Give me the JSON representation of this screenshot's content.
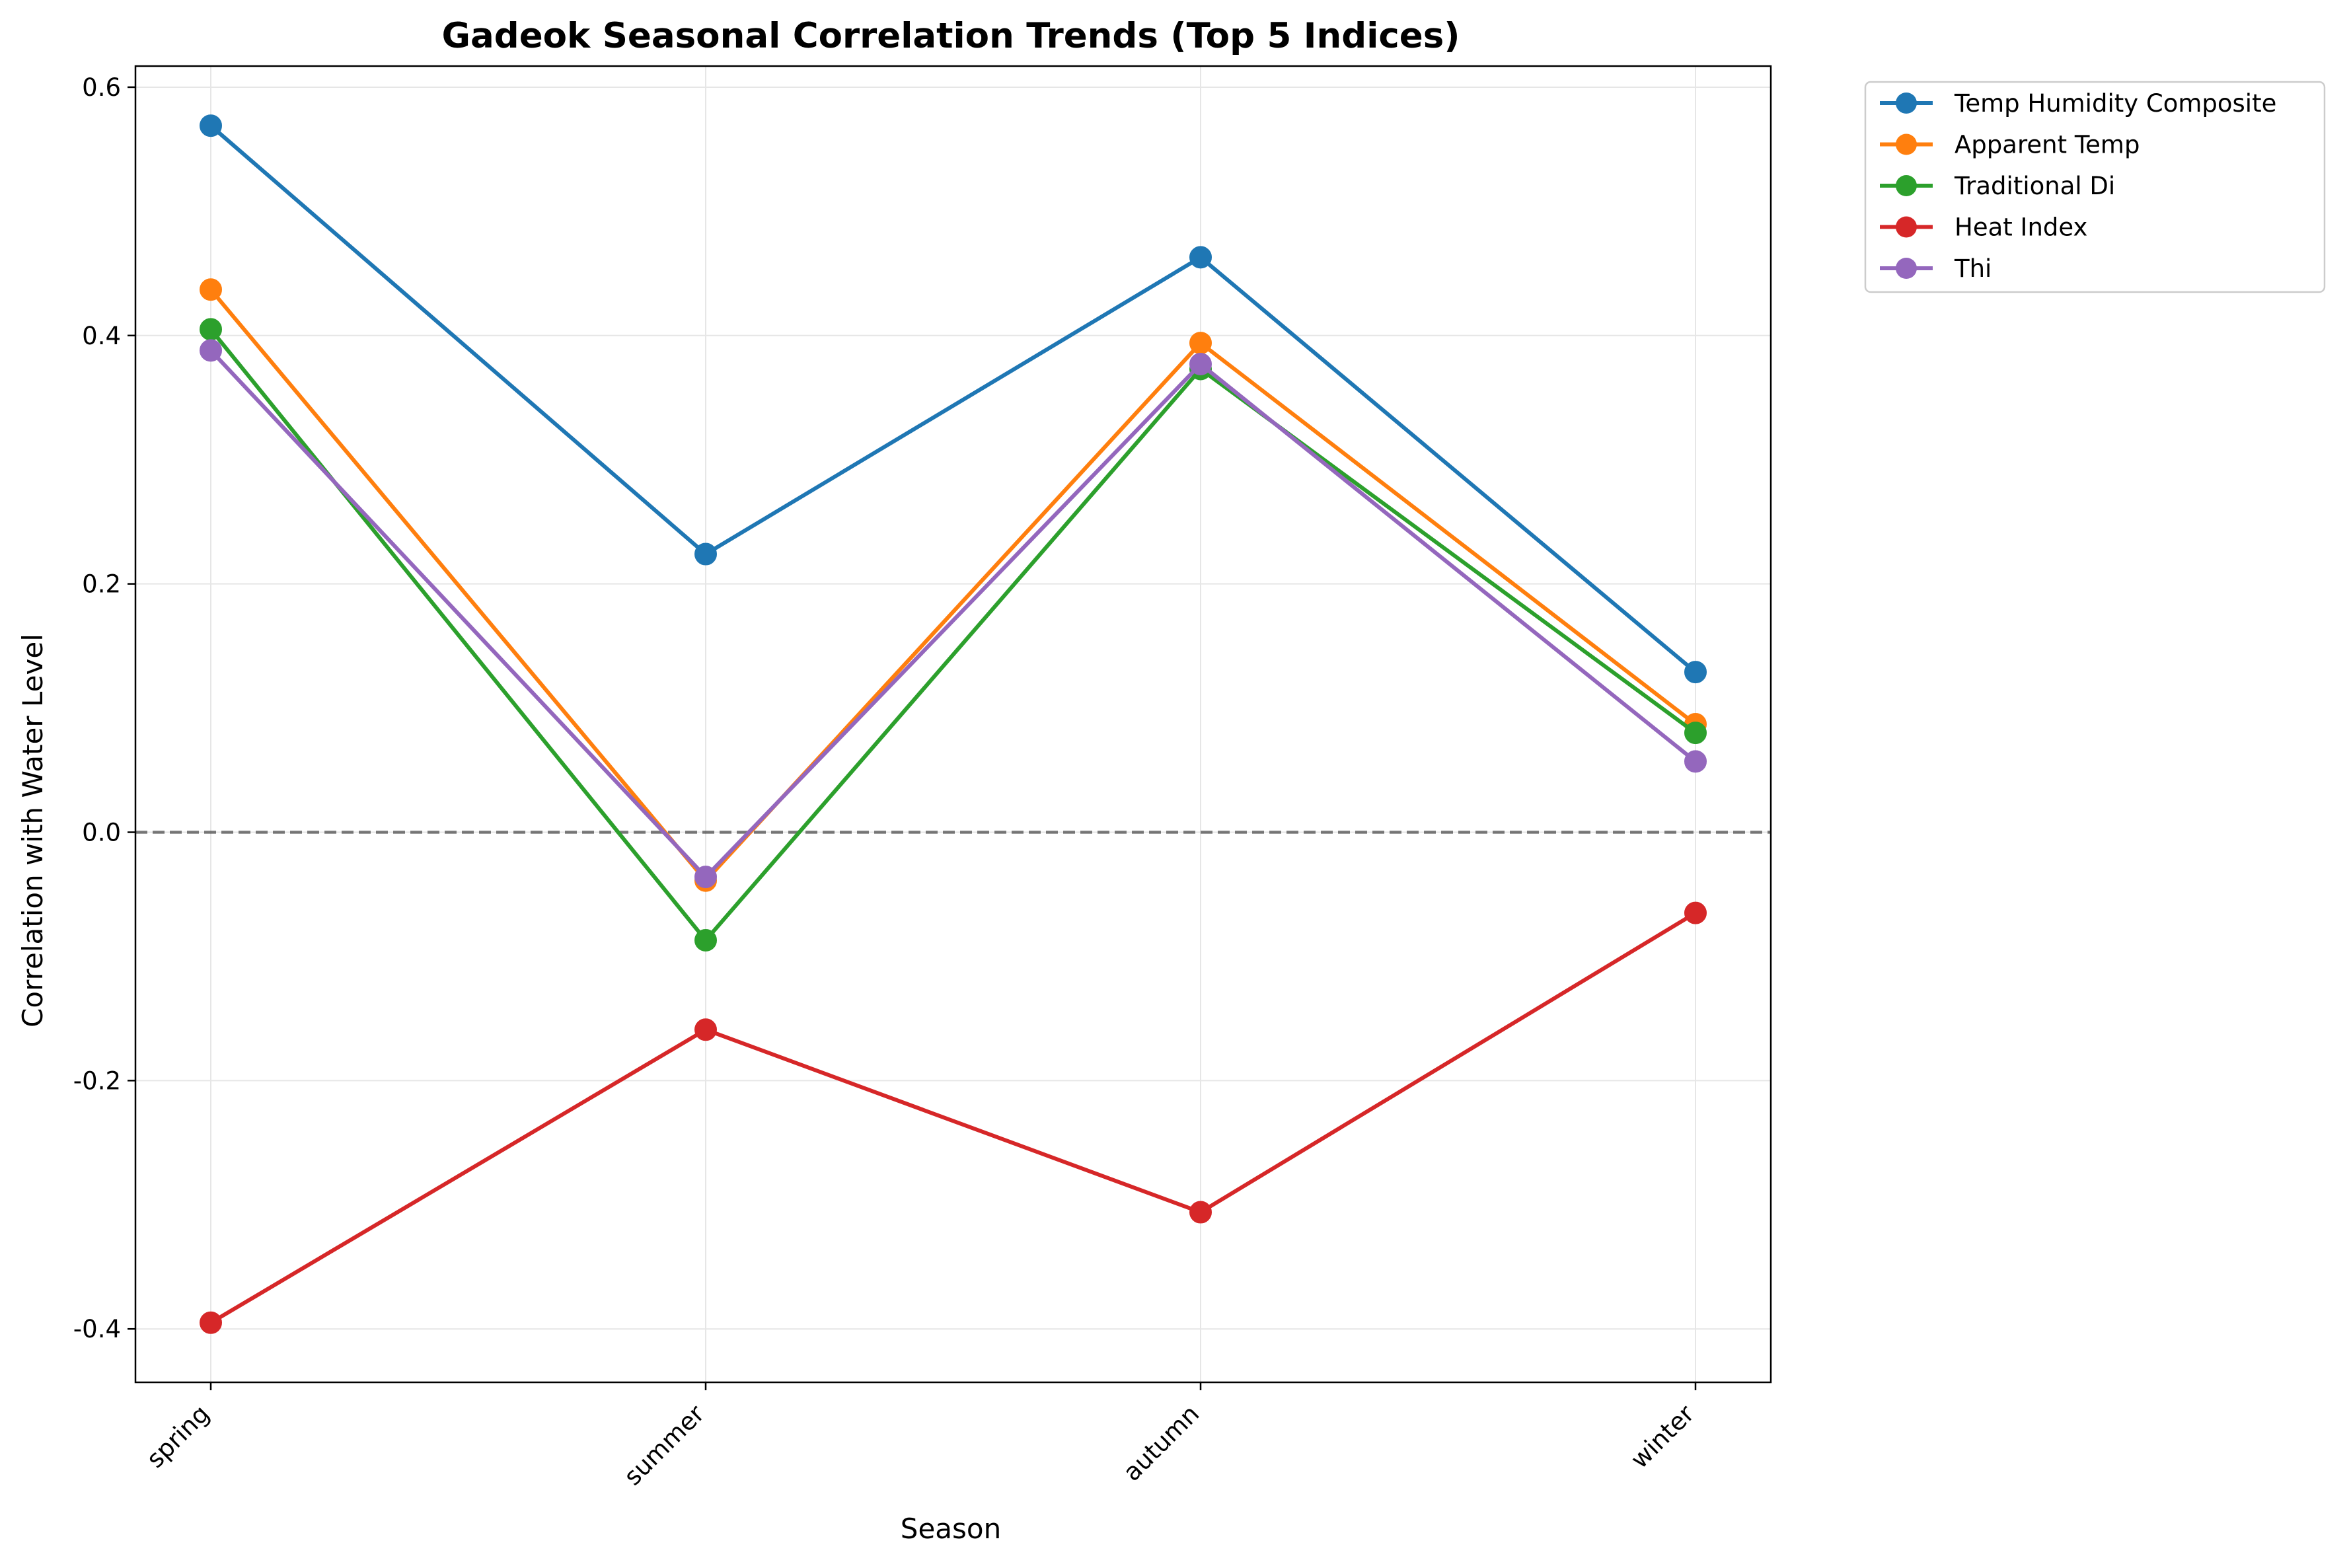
{
  "chart_data": {
    "type": "line",
    "title": "Gadeok Seasonal Correlation Trends (Top 5 Indices)",
    "xlabel": "Season",
    "ylabel": "Correlation with Water Level",
    "categories": [
      "spring",
      "summer",
      "autumn",
      "winter"
    ],
    "yticks": [
      "-0.4",
      "-0.2",
      "0.0",
      "0.2",
      "0.4",
      "0.6"
    ],
    "ylim": [
      -0.443,
      0.617
    ],
    "grid": true,
    "zero_reference_line": 0.0,
    "legend_position": "outside-top-right",
    "series": [
      {
        "name": "Temp Humidity Composite",
        "color": "#1f77b4",
        "values": [
          0.569,
          0.224,
          0.463,
          0.129
        ]
      },
      {
        "name": "Apparent Temp",
        "color": "#ff7f0e",
        "values": [
          0.437,
          -0.039,
          0.394,
          0.087
        ]
      },
      {
        "name": "Traditional Di",
        "color": "#2ca02c",
        "values": [
          0.405,
          -0.087,
          0.373,
          0.08
        ]
      },
      {
        "name": "Heat Index",
        "color": "#d62728",
        "values": [
          -0.395,
          -0.159,
          -0.306,
          -0.065
        ]
      },
      {
        "name": "Thi",
        "color": "#9467bd",
        "values": [
          0.388,
          -0.036,
          0.377,
          0.057
        ]
      }
    ]
  }
}
